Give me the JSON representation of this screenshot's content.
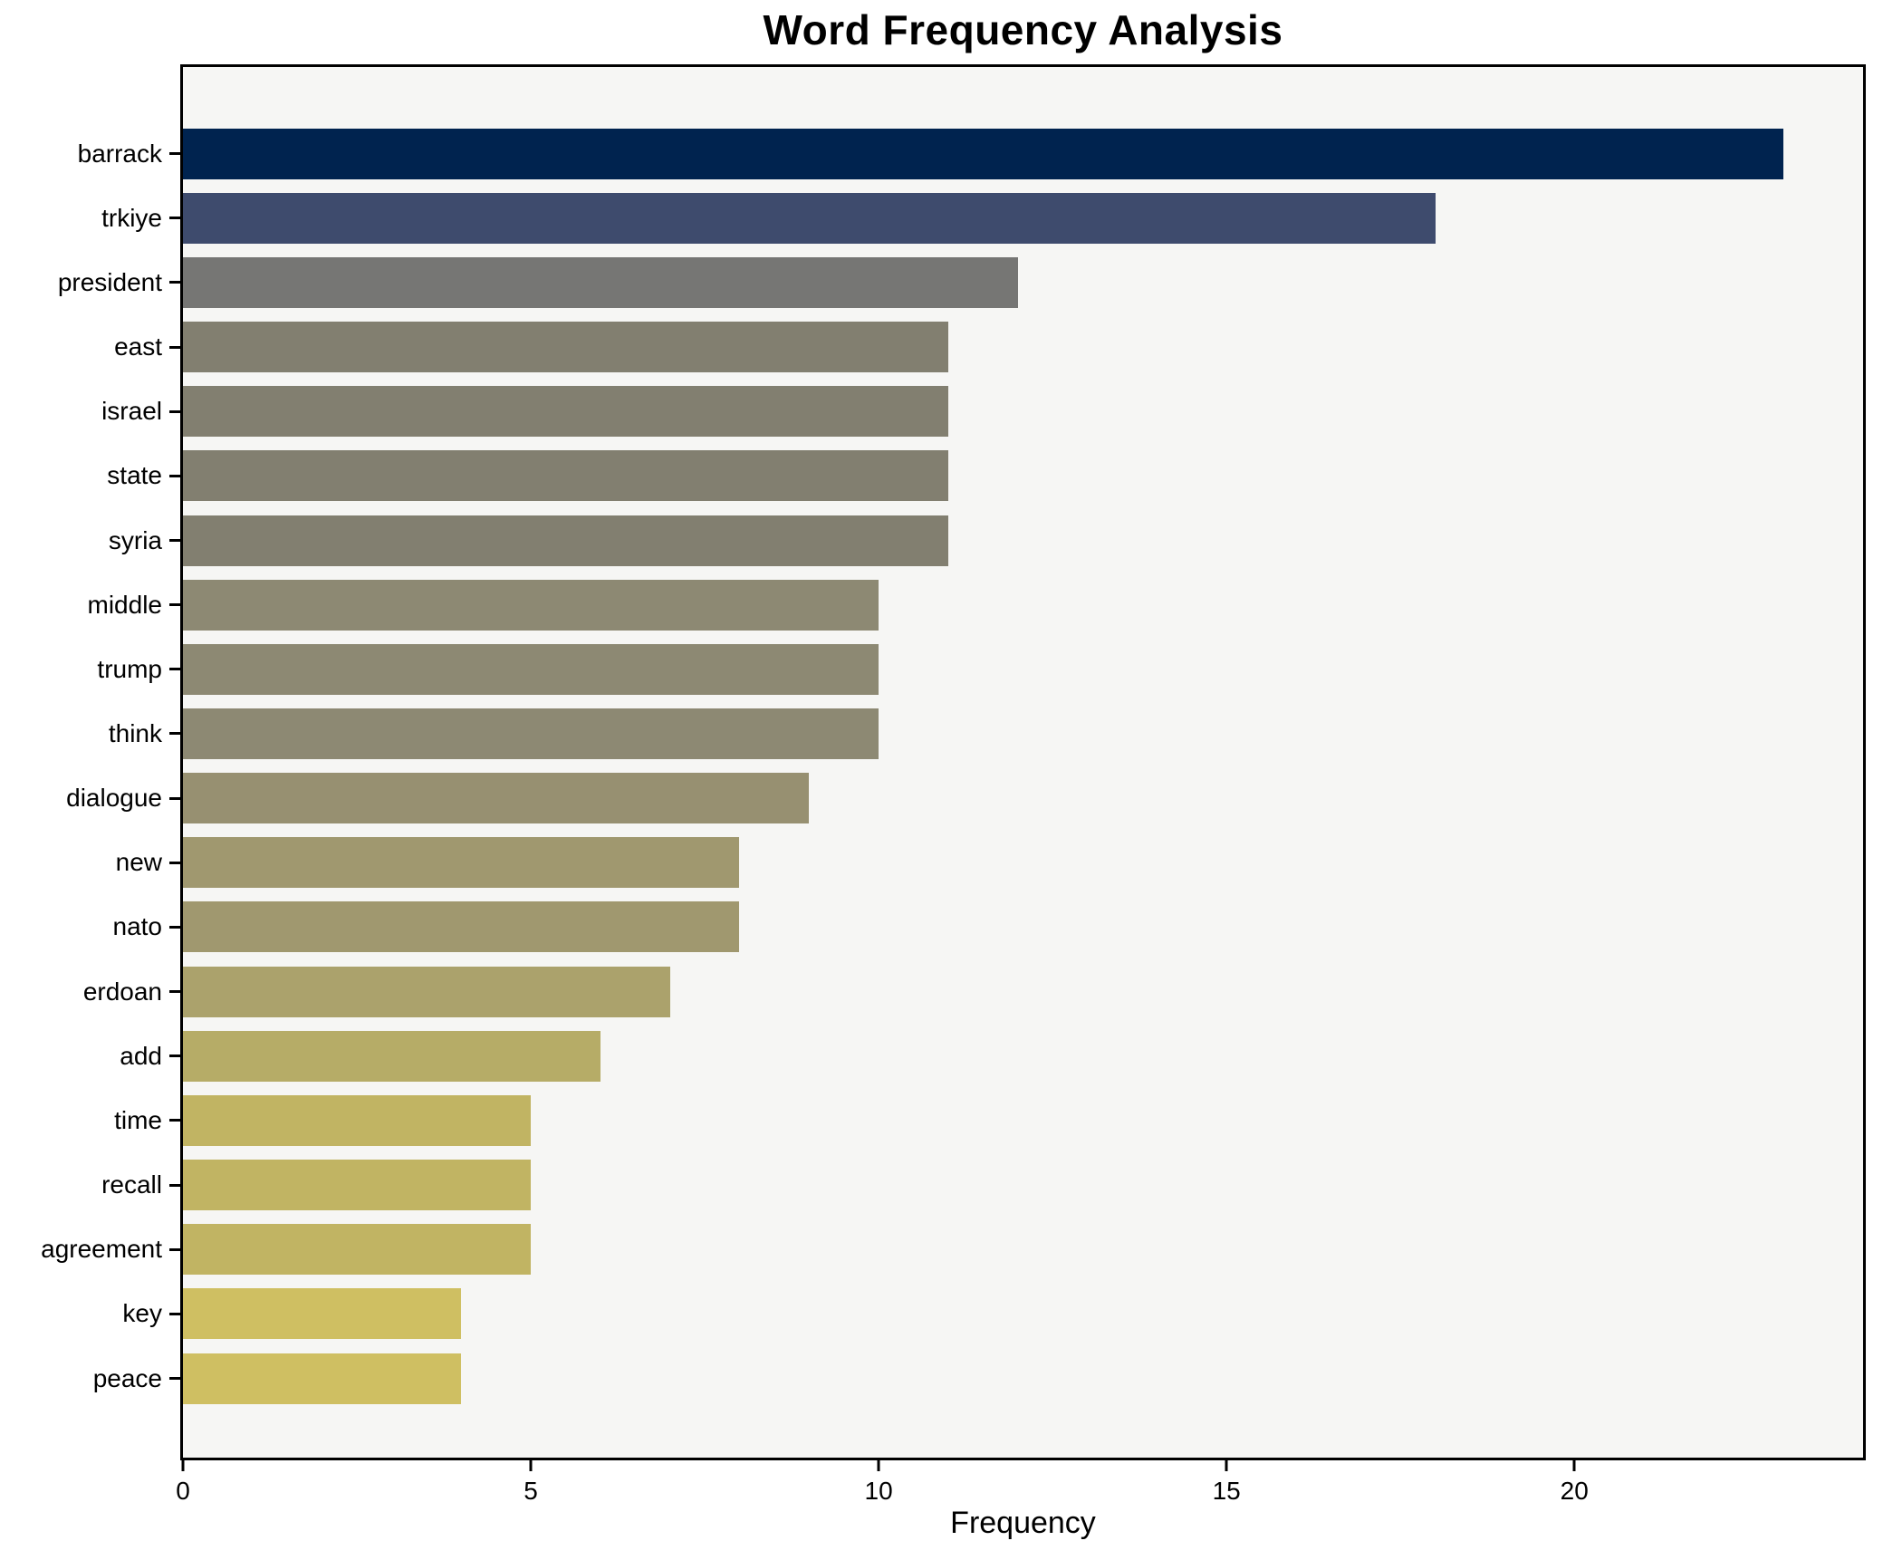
{
  "figure": {
    "background": "#ffffff",
    "plot_background": "#f6f6f4",
    "spine_color": "#000000",
    "text_color": "#000000"
  },
  "chart_data": {
    "type": "bar",
    "orientation": "horizontal",
    "title": "Word Frequency Analysis",
    "xlabel": "Frequency",
    "ylabel": "",
    "categories": [
      "barrack",
      "trkiye",
      "president",
      "east",
      "israel",
      "state",
      "syria",
      "middle",
      "trump",
      "think",
      "dialogue",
      "new",
      "nato",
      "erdoan",
      "add",
      "time",
      "recall",
      "agreement",
      "key",
      "peace"
    ],
    "values": [
      23,
      18,
      12,
      11,
      11,
      11,
      11,
      10,
      10,
      10,
      9,
      8,
      8,
      7,
      6,
      5,
      5,
      5,
      4,
      4
    ],
    "bar_colors": [
      "#00234f",
      "#3e4b6d",
      "#767674",
      "#827f70",
      "#827f70",
      "#827f70",
      "#827f70",
      "#8d8973",
      "#8d8973",
      "#8d8973",
      "#979071",
      "#a0986f",
      "#a0986f",
      "#aba26c",
      "#b6ac67",
      "#c1b463",
      "#c1b463",
      "#c1b463",
      "#cfbf62",
      "#cfbf62"
    ],
    "xticks": [
      0,
      5,
      10,
      15,
      20
    ],
    "xlim": [
      0,
      24.15
    ],
    "grid": false,
    "legend": null
  }
}
